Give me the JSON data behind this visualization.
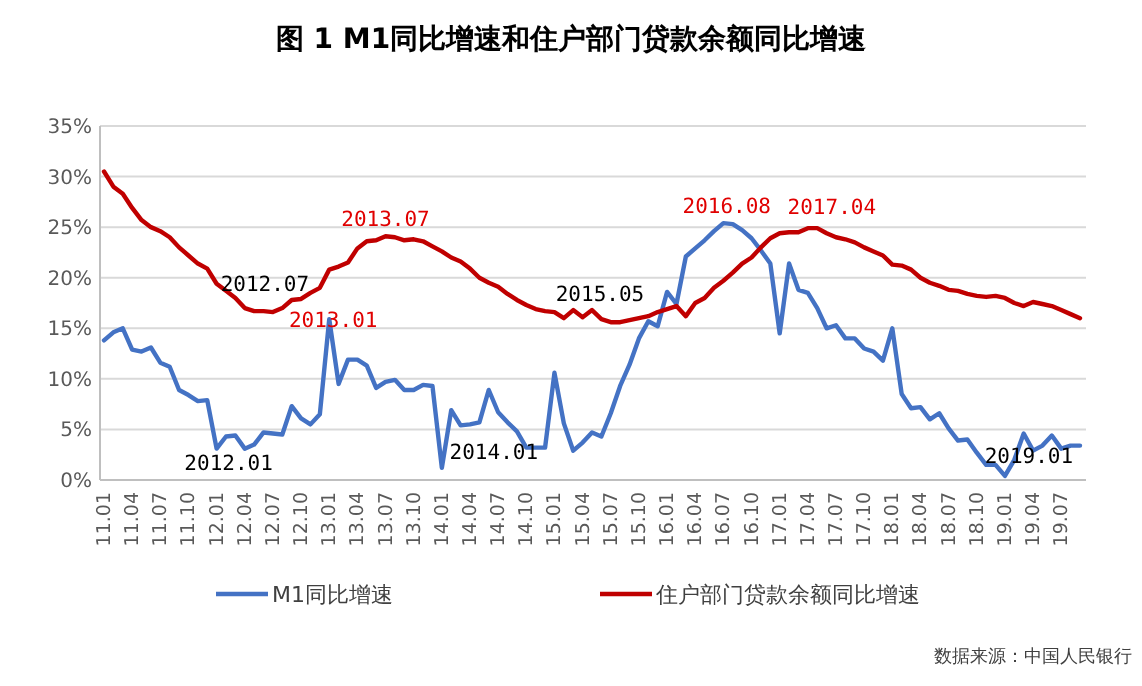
{
  "chart_data": {
    "type": "line",
    "title": "图 1   M1同比增速和住户部门贷款余额同比增速",
    "categories": [
      "11.01",
      null,
      null,
      "11.04",
      null,
      null,
      "11.07",
      null,
      null,
      "11.10",
      null,
      null,
      "12.01",
      null,
      null,
      "12.04",
      null,
      null,
      "12.07",
      null,
      null,
      "12.10",
      null,
      null,
      "13.01",
      null,
      null,
      "13.04",
      null,
      null,
      "13.07",
      null,
      null,
      "13.10",
      null,
      null,
      "14.01",
      null,
      null,
      "14.04",
      null,
      null,
      "14.07",
      null,
      null,
      "14.10",
      null,
      null,
      "15.01",
      null,
      null,
      "15.04",
      null,
      null,
      "15.07",
      null,
      null,
      "15.10",
      null,
      null,
      "16.01",
      null,
      null,
      "16.04",
      null,
      null,
      "16.07",
      null,
      null,
      "16.10",
      null,
      null,
      "17.01",
      null,
      null,
      "17.04",
      null,
      null,
      "17.07",
      null,
      null,
      "17.10",
      null,
      null,
      "18.01",
      null,
      null,
      "18.04",
      null,
      null,
      "18.07",
      null,
      null,
      "18.10",
      null,
      null,
      "19.01",
      null,
      null,
      "19.04",
      null,
      null,
      "19.07",
      null,
      null
    ],
    "series": [
      {
        "name": "M1同比增速",
        "color": "#4472c4",
        "values": [
          13.8,
          14.6,
          15.0,
          12.9,
          12.7,
          13.1,
          11.6,
          11.2,
          8.9,
          8.4,
          7.8,
          7.9,
          3.1,
          4.3,
          4.4,
          3.1,
          3.5,
          4.7,
          4.6,
          4.5,
          7.3,
          6.1,
          5.5,
          6.5,
          15.9,
          9.5,
          11.9,
          11.9,
          11.3,
          9.1,
          9.7,
          9.9,
          8.9,
          8.9,
          9.4,
          9.3,
          1.2,
          6.9,
          5.4,
          5.5,
          5.7,
          8.9,
          6.7,
          5.7,
          4.8,
          3.2,
          3.2,
          3.2,
          10.6,
          5.6,
          2.9,
          3.7,
          4.7,
          4.3,
          6.6,
          9.3,
          11.4,
          14.0,
          15.7,
          15.2,
          18.6,
          17.4,
          22.1,
          22.9,
          23.7,
          24.6,
          25.4,
          25.3,
          24.7,
          23.9,
          22.7,
          21.4,
          14.5,
          21.4,
          18.8,
          18.5,
          17.0,
          15.0,
          15.3,
          14.0,
          14.0,
          13.0,
          12.7,
          11.8,
          15.0,
          8.5,
          7.1,
          7.2,
          6.0,
          6.6,
          5.1,
          3.9,
          4.0,
          2.7,
          1.5,
          1.5,
          0.4,
          2.0,
          4.6,
          2.9,
          3.4,
          4.4,
          3.1,
          3.4,
          3.4
        ]
      },
      {
        "name": "住户部门贷款余额同比增速",
        "color": "#c00000",
        "values": [
          30.5,
          29.0,
          28.3,
          26.9,
          25.7,
          25.0,
          24.6,
          24.0,
          23.0,
          22.2,
          21.4,
          20.9,
          19.4,
          18.7,
          18.0,
          17.0,
          16.7,
          16.7,
          16.6,
          17.0,
          17.8,
          17.9,
          18.5,
          19.0,
          20.8,
          21.1,
          21.5,
          22.9,
          23.6,
          23.7,
          24.1,
          24.0,
          23.7,
          23.8,
          23.6,
          23.1,
          22.6,
          22.0,
          21.6,
          20.9,
          20.0,
          19.5,
          19.1,
          18.4,
          17.8,
          17.3,
          16.9,
          16.7,
          16.6,
          16.0,
          16.8,
          16.1,
          16.8,
          15.9,
          15.6,
          15.6,
          15.8,
          16.0,
          16.2,
          16.6,
          16.9,
          17.2,
          16.2,
          17.5,
          18.0,
          19.0,
          19.7,
          20.5,
          21.4,
          22.0,
          23.0,
          23.9,
          24.4,
          24.5,
          24.5,
          24.9,
          24.9,
          24.4,
          24.0,
          23.8,
          23.5,
          23.0,
          22.6,
          22.2,
          21.3,
          21.2,
          20.8,
          20.0,
          19.5,
          19.2,
          18.8,
          18.7,
          18.4,
          18.2,
          18.1,
          18.2,
          18.0,
          17.5,
          17.2,
          17.6,
          17.4,
          17.2,
          16.8,
          16.4,
          16.0
        ]
      }
    ],
    "ylim": [
      0,
      35
    ],
    "yticks": [
      {
        "value": 0,
        "label": "0%"
      },
      {
        "value": 5,
        "label": "5%"
      },
      {
        "value": 10,
        "label": "10%"
      },
      {
        "value": 15,
        "label": "15%"
      },
      {
        "value": 20,
        "label": "20%"
      },
      {
        "value": 25,
        "label": "25%"
      },
      {
        "value": 30,
        "label": "30%"
      },
      {
        "value": 35,
        "label": "35%"
      }
    ],
    "grid": "y",
    "legend": "bottom",
    "marker": "none",
    "line_style": "solid",
    "annotations": [
      {
        "text": "2012.07",
        "x": "12.07",
        "y": 16.6
      },
      {
        "text": "2013.01",
        "x": "13.01",
        "y": 15.9
      },
      {
        "text": "2013.07",
        "x": "13.07",
        "y": 24.1
      },
      {
        "text": "2012.01",
        "x": "12.01",
        "y": 3.1
      },
      {
        "text": "2014.01",
        "x": "14.01",
        "y": 1.2
      },
      {
        "text": "2015.05",
        "y": 16.8
      },
      {
        "text": "2016.08",
        "y": 25.3
      },
      {
        "text": "2017.04",
        "x": "17.04",
        "y": 24.9
      },
      {
        "text": "2019.01",
        "x": "19.01",
        "y": 0.4
      },
      "数据来源：中国人民银行"
    ]
  }
}
